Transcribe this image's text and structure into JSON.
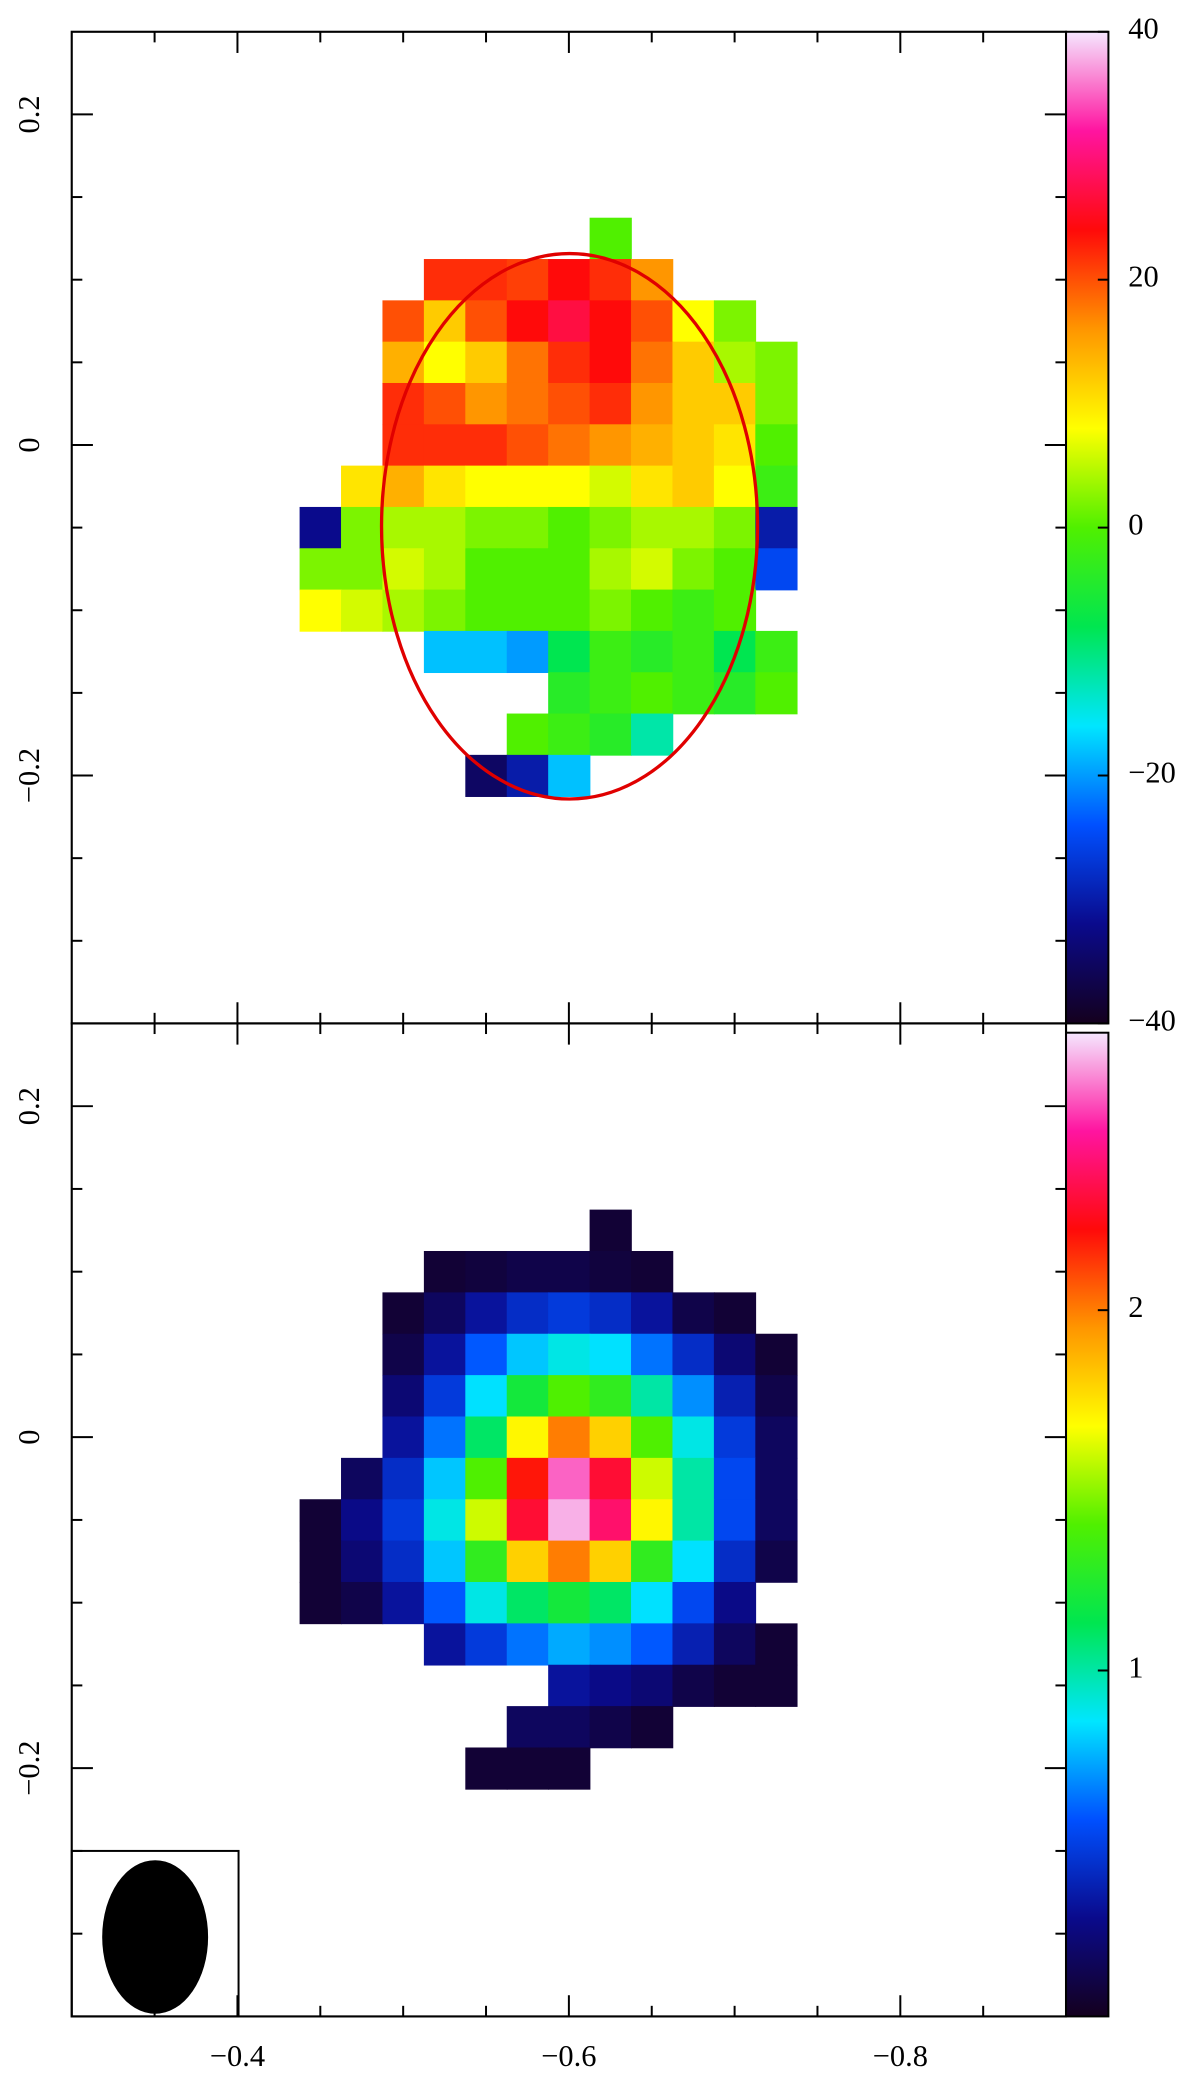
{
  "chart_data": [
    {
      "type": "heatmap",
      "x": [
        -0.45,
        -0.475,
        -0.5,
        -0.525,
        -0.55,
        -0.575,
        -0.6,
        -0.625,
        -0.65,
        -0.675,
        -0.7,
        -0.725,
        -0.75
      ],
      "y": [
        0.125,
        0.1,
        0.075,
        0.05,
        0.025,
        0,
        -0.025,
        -0.05,
        -0.075,
        -0.1,
        -0.125,
        -0.15,
        -0.175,
        -0.2
      ],
      "z": [
        [
          null,
          null,
          null,
          null,
          null,
          null,
          null,
          0,
          null,
          null,
          null,
          null,
          null
        ],
        [
          null,
          null,
          null,
          22,
          22,
          21,
          24,
          22,
          16,
          null,
          null,
          null,
          null
        ],
        [
          null,
          null,
          20,
          12,
          20,
          24,
          27,
          24,
          20,
          8,
          2,
          null,
          null
        ],
        [
          null,
          null,
          14,
          8,
          12,
          18,
          22,
          24,
          18,
          12,
          4,
          2,
          null
        ],
        [
          null,
          null,
          22,
          20,
          16,
          18,
          20,
          22,
          16,
          12,
          12,
          2,
          null
        ],
        [
          null,
          null,
          22,
          22,
          22,
          20,
          18,
          16,
          14,
          12,
          10,
          0,
          null
        ],
        [
          null,
          10,
          14,
          10,
          8,
          8,
          8,
          6,
          10,
          12,
          8,
          -2,
          null
        ],
        [
          -32,
          2,
          4,
          4,
          2,
          2,
          0,
          2,
          4,
          4,
          2,
          -30,
          null
        ],
        [
          2,
          2,
          6,
          4,
          0,
          0,
          0,
          4,
          6,
          2,
          0,
          -25,
          null
        ],
        [
          8,
          6,
          4,
          2,
          0,
          0,
          0,
          2,
          0,
          -2,
          0,
          null,
          null
        ],
        [
          null,
          null,
          null,
          -18,
          -18,
          -20,
          -8,
          -2,
          -4,
          -2,
          -8,
          -2,
          null
        ],
        [
          null,
          null,
          null,
          null,
          null,
          null,
          -4,
          -2,
          0,
          -2,
          -4,
          0,
          null
        ],
        [
          null,
          null,
          null,
          null,
          null,
          0,
          -2,
          -4,
          -12,
          null,
          null,
          null,
          null
        ],
        [
          null,
          null,
          null,
          null,
          -35,
          -30,
          -18,
          null,
          null,
          null,
          null,
          null,
          null
        ]
      ],
      "xlim": [
        -0.3,
        -0.9
      ],
      "ylim": [
        -0.35,
        0.25
      ],
      "xticks": [
        -0.4,
        -0.6,
        -0.8
      ],
      "xminorticks": [
        -0.35,
        -0.45,
        -0.5,
        -0.55,
        -0.65,
        -0.7,
        -0.75,
        -0.85
      ],
      "yticks": [
        0.2,
        0,
        {
          "value": -0.2,
          "label": "−0.2"
        }
      ],
      "yminorticks": [
        0.15,
        0.1,
        0.05,
        -0.05,
        -0.1,
        -0.15,
        -0.25,
        -0.3
      ],
      "clim": [
        -40,
        40
      ],
      "cticks": [
        40,
        20,
        0,
        {
          "value": -20,
          "label": "−20"
        },
        {
          "value": -40,
          "label": "−40"
        }
      ],
      "colormap": [
        "#14001e",
        "#0a0a8c",
        "#0050ff",
        "#00e6ff",
        "#00e650",
        "#50f000",
        "#ffff00",
        "#ff9600",
        "#ff0a0a",
        "#ff14a0",
        "#f5e6ff"
      ]
    },
    {
      "type": "heatmap",
      "x": [
        -0.45,
        -0.475,
        -0.5,
        -0.525,
        -0.55,
        -0.575,
        -0.6,
        -0.625,
        -0.65,
        -0.675,
        -0.7,
        -0.725,
        -0.75
      ],
      "y": [
        0.125,
        0.1,
        0.075,
        0.05,
        0.025,
        0,
        -0.025,
        -0.05,
        -0.075,
        -0.1,
        -0.125,
        -0.15,
        -0.175,
        -0.2
      ],
      "z": [
        [
          null,
          null,
          null,
          null,
          null,
          null,
          null,
          0.1,
          null,
          null,
          null,
          null,
          null
        ],
        [
          null,
          null,
          null,
          0.1,
          0.12,
          0.15,
          0.15,
          0.12,
          0.1,
          null,
          null,
          null,
          null
        ],
        [
          null,
          null,
          0.1,
          0.2,
          0.35,
          0.45,
          0.5,
          0.45,
          0.35,
          0.15,
          0.1,
          null,
          null
        ],
        [
          null,
          null,
          0.15,
          0.35,
          0.6,
          0.8,
          0.9,
          0.85,
          0.65,
          0.45,
          0.25,
          0.1,
          null
        ],
        [
          null,
          null,
          0.25,
          0.5,
          0.85,
          1.2,
          1.4,
          1.3,
          1.0,
          0.7,
          0.4,
          0.15,
          null
        ],
        [
          null,
          null,
          0.35,
          0.65,
          1.1,
          1.7,
          2.0,
          1.8,
          1.4,
          0.9,
          0.5,
          0.2,
          null
        ],
        [
          null,
          0.2,
          0.45,
          0.8,
          1.4,
          2.2,
          2.6,
          2.3,
          1.6,
          1.0,
          0.55,
          0.2,
          null
        ],
        [
          0.1,
          0.3,
          0.5,
          0.9,
          1.6,
          2.3,
          2.7,
          2.4,
          1.7,
          1.0,
          0.55,
          0.2,
          null
        ],
        [
          0.1,
          0.25,
          0.45,
          0.8,
          1.3,
          1.8,
          2.0,
          1.8,
          1.3,
          0.85,
          0.45,
          0.15,
          null
        ],
        [
          0.1,
          0.15,
          0.35,
          0.6,
          0.9,
          1.1,
          1.2,
          1.1,
          0.85,
          0.55,
          0.3,
          null,
          null
        ],
        [
          null,
          null,
          null,
          0.35,
          0.5,
          0.65,
          0.75,
          0.7,
          0.6,
          0.4,
          0.2,
          0.1,
          null
        ],
        [
          null,
          null,
          null,
          null,
          null,
          null,
          0.35,
          0.3,
          0.25,
          0.15,
          0.1,
          0.1,
          null
        ],
        [
          null,
          null,
          null,
          null,
          null,
          0.2,
          0.2,
          0.15,
          0.1,
          null,
          null,
          null,
          null
        ],
        [
          null,
          null,
          null,
          null,
          0.1,
          0.1,
          0.1,
          null,
          null,
          null,
          null,
          null,
          null
        ]
      ],
      "xlim": [
        -0.3,
        -0.9
      ],
      "ylim": [
        -0.35,
        0.25
      ],
      "xticks": [
        {
          "value": -0.4,
          "label": "−0.4"
        },
        {
          "value": -0.6,
          "label": "−0.6"
        },
        {
          "value": -0.8,
          "label": "−0.8"
        }
      ],
      "xminorticks": [
        -0.35,
        -0.45,
        -0.5,
        -0.55,
        -0.65,
        -0.7,
        -0.75,
        -0.85
      ],
      "yticks": [
        0.2,
        0,
        {
          "value": -0.2,
          "label": "−0.2"
        }
      ],
      "yminorticks": [
        0.15,
        0.1,
        0.05,
        -0.05,
        -0.1,
        -0.15,
        -0.25,
        -0.3
      ],
      "clim": [
        0.04,
        2.77
      ],
      "cticks": [
        2,
        1
      ],
      "colormap": [
        "#14001e",
        "#0a0a8c",
        "#0050ff",
        "#00e6ff",
        "#00e650",
        "#50f000",
        "#ffff00",
        "#ff9600",
        "#ff0a0a",
        "#ff14a0",
        "#f5e6ff"
      ]
    }
  ]
}
